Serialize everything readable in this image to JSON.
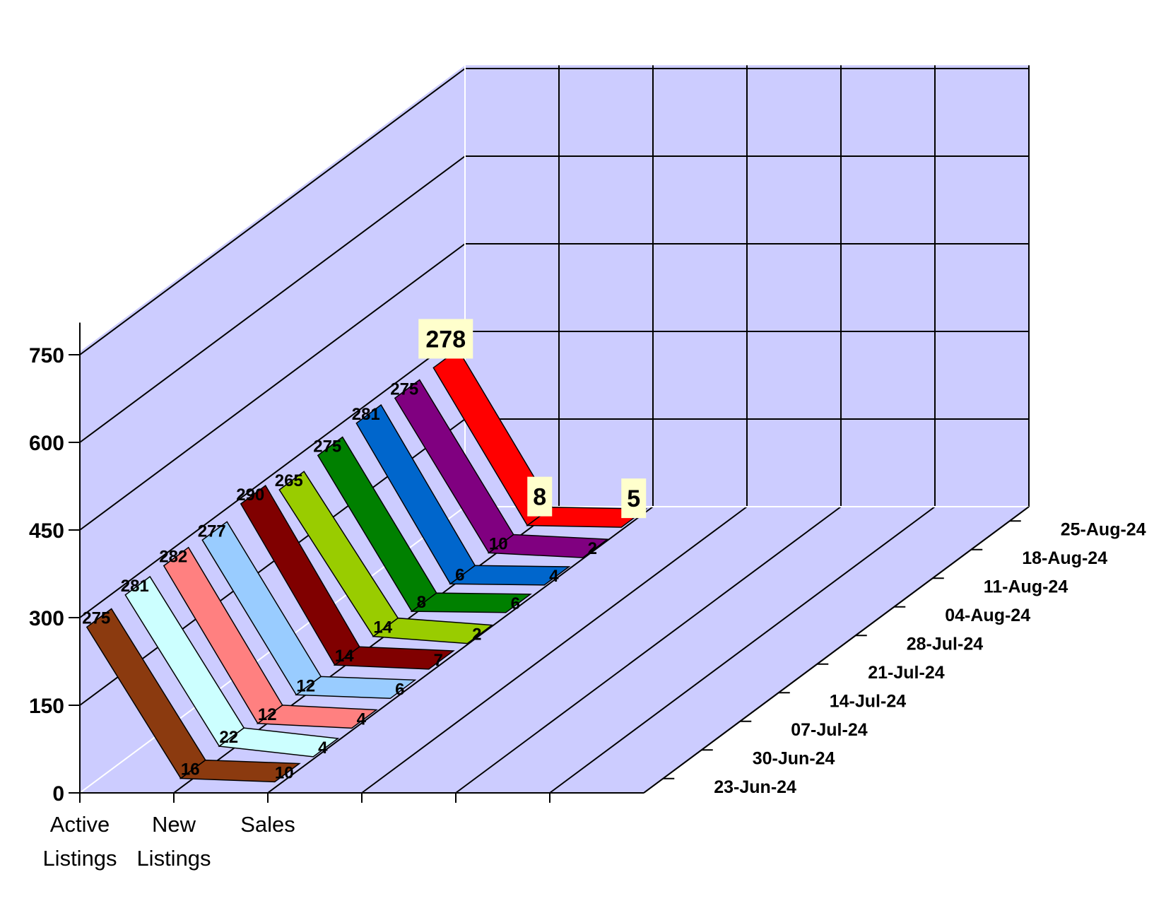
{
  "chart_data": {
    "type": "line",
    "title": "",
    "categories": [
      "Active Listings",
      "New Listings",
      "Sales"
    ],
    "category_label_lines": [
      [
        "Active",
        "Listings"
      ],
      [
        "New",
        "Listings"
      ],
      [
        "Sales",
        ""
      ]
    ],
    "ylim": [
      0,
      750
    ],
    "yticks": [
      0,
      150,
      300,
      450,
      600,
      750
    ],
    "grid": true,
    "series": [
      {
        "name": "23-Jun-24",
        "color": "#8b3a0f",
        "values": [
          275,
          16,
          10
        ]
      },
      {
        "name": "30-Jun-24",
        "color": "#ccffff",
        "values": [
          281,
          22,
          4
        ]
      },
      {
        "name": "07-Jul-24",
        "color": "#ff8080",
        "values": [
          282,
          12,
          4
        ]
      },
      {
        "name": "14-Jul-24",
        "color": "#99ccff",
        "values": [
          277,
          12,
          6
        ]
      },
      {
        "name": "21-Jul-24",
        "color": "#800000",
        "values": [
          290,
          14,
          7
        ]
      },
      {
        "name": "28-Jul-24",
        "color": "#99cc00",
        "values": [
          265,
          14,
          2
        ]
      },
      {
        "name": "04-Aug-24",
        "color": "#008000",
        "values": [
          275,
          8,
          6
        ]
      },
      {
        "name": "11-Aug-24",
        "color": "#0066cc",
        "values": [
          281,
          6,
          4
        ]
      },
      {
        "name": "18-Aug-24",
        "color": "#800080",
        "values": [
          275,
          10,
          2
        ]
      },
      {
        "name": "25-Aug-24",
        "color": "#ff0000",
        "values": [
          278,
          8,
          5
        ]
      }
    ]
  },
  "colors": {
    "wall": "#ccccff",
    "grid": "#000000",
    "floor_line": "#ffffff",
    "highlight_label_bg": "#ffffcc"
  }
}
